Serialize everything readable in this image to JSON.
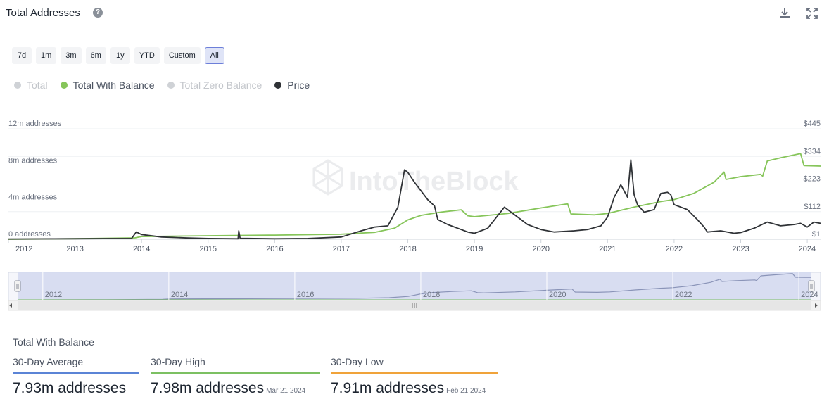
{
  "header": {
    "title": "Total Addresses",
    "help_glyph": "?"
  },
  "ranges": [
    "7d",
    "1m",
    "3m",
    "6m",
    "1y",
    "YTD",
    "Custom",
    "All"
  ],
  "active_range": "All",
  "legend": [
    {
      "label": "Total",
      "color": "#cfd2d6",
      "muted": true
    },
    {
      "label": "Total With Balance",
      "color": "#86c55a",
      "muted": false
    },
    {
      "label": "Total Zero Balance",
      "color": "#cfd2d6",
      "muted": true
    },
    {
      "label": "Price",
      "color": "#2f3236",
      "muted": false
    }
  ],
  "watermark": "IntoTheBlock",
  "chart_data": {
    "type": "line",
    "title": "Total Addresses",
    "x_range": [
      2012.0,
      2024.2
    ],
    "x_ticks": [
      "2012",
      "2013",
      "2014",
      "2015",
      "2016",
      "2017",
      "2018",
      "2019",
      "2020",
      "2021",
      "2022",
      "2023",
      "2024"
    ],
    "y_left_range": [
      0,
      12000000
    ],
    "y_left_ticks": [
      "0 addresses",
      "4m addresses",
      "8m addresses",
      "12m addresses"
    ],
    "y_right_range": [
      1,
      445
    ],
    "y_right_ticks": [
      "$1",
      "$112",
      "$223",
      "$334",
      "$445"
    ],
    "series": [
      {
        "name": "Total With Balance",
        "axis": "left",
        "color": "#86c55a",
        "points": [
          [
            2012.0,
            0
          ],
          [
            2013.0,
            60000
          ],
          [
            2013.9,
            150000
          ],
          [
            2014.0,
            300000
          ],
          [
            2015.0,
            380000
          ],
          [
            2016.0,
            450000
          ],
          [
            2017.0,
            550000
          ],
          [
            2017.5,
            750000
          ],
          [
            2017.8,
            1200000
          ],
          [
            2018.0,
            2100000
          ],
          [
            2018.2,
            2600000
          ],
          [
            2018.5,
            2950000
          ],
          [
            2018.8,
            3200000
          ],
          [
            2018.9,
            2550000
          ],
          [
            2019.0,
            2450000
          ],
          [
            2019.5,
            2800000
          ],
          [
            2020.0,
            3400000
          ],
          [
            2020.4,
            3850000
          ],
          [
            2020.45,
            2750000
          ],
          [
            2020.8,
            2650000
          ],
          [
            2021.0,
            2800000
          ],
          [
            2021.4,
            3500000
          ],
          [
            2021.8,
            4100000
          ],
          [
            2022.0,
            4300000
          ],
          [
            2022.3,
            5000000
          ],
          [
            2022.6,
            6200000
          ],
          [
            2022.75,
            7300000
          ],
          [
            2022.78,
            6500000
          ],
          [
            2023.0,
            6800000
          ],
          [
            2023.3,
            7050000
          ],
          [
            2023.33,
            6850000
          ],
          [
            2023.4,
            8500000
          ],
          [
            2023.6,
            8850000
          ],
          [
            2023.9,
            9300000
          ],
          [
            2023.95,
            8000000
          ],
          [
            2024.2,
            7950000
          ]
        ]
      },
      {
        "name": "Price",
        "axis": "right",
        "color": "#2f3236",
        "points": [
          [
            2012.0,
            2
          ],
          [
            2013.0,
            3
          ],
          [
            2013.85,
            4
          ],
          [
            2013.92,
            30
          ],
          [
            2014.0,
            20
          ],
          [
            2014.3,
            10
          ],
          [
            2014.7,
            6
          ],
          [
            2015.0,
            4
          ],
          [
            2015.45,
            3
          ],
          [
            2015.46,
            35
          ],
          [
            2015.48,
            5
          ],
          [
            2016.0,
            3
          ],
          [
            2016.5,
            4
          ],
          [
            2017.0,
            10
          ],
          [
            2017.3,
            35
          ],
          [
            2017.5,
            50
          ],
          [
            2017.7,
            55
          ],
          [
            2017.85,
            130
          ],
          [
            2017.95,
            280
          ],
          [
            2018.0,
            270
          ],
          [
            2018.1,
            230
          ],
          [
            2018.3,
            160
          ],
          [
            2018.4,
            135
          ],
          [
            2018.45,
            80
          ],
          [
            2018.6,
            60
          ],
          [
            2018.9,
            30
          ],
          [
            2019.0,
            25
          ],
          [
            2019.2,
            45
          ],
          [
            2019.45,
            130
          ],
          [
            2019.6,
            100
          ],
          [
            2019.8,
            60
          ],
          [
            2020.0,
            40
          ],
          [
            2020.2,
            30
          ],
          [
            2020.5,
            35
          ],
          [
            2020.7,
            40
          ],
          [
            2020.9,
            55
          ],
          [
            2021.0,
            90
          ],
          [
            2021.1,
            170
          ],
          [
            2021.2,
            220
          ],
          [
            2021.3,
            170
          ],
          [
            2021.35,
            320
          ],
          [
            2021.4,
            180
          ],
          [
            2021.45,
            140
          ],
          [
            2021.55,
            110
          ],
          [
            2021.7,
            120
          ],
          [
            2021.8,
            185
          ],
          [
            2021.9,
            190
          ],
          [
            2021.95,
            180
          ],
          [
            2022.0,
            140
          ],
          [
            2022.2,
            120
          ],
          [
            2022.35,
            80
          ],
          [
            2022.45,
            50
          ],
          [
            2022.5,
            30
          ],
          [
            2022.7,
            35
          ],
          [
            2022.9,
            25
          ],
          [
            2023.0,
            28
          ],
          [
            2023.2,
            45
          ],
          [
            2023.4,
            70
          ],
          [
            2023.6,
            55
          ],
          [
            2023.8,
            60
          ],
          [
            2023.9,
            65
          ],
          [
            2024.0,
            50
          ],
          [
            2024.1,
            70
          ],
          [
            2024.2,
            65
          ]
        ]
      }
    ]
  },
  "navigator": {
    "ticks": [
      "2012",
      "2014",
      "2016",
      "2018",
      "2020",
      "2022",
      "2024"
    ]
  },
  "stats": {
    "title": "Total With Balance",
    "items": [
      {
        "label": "30-Day Average",
        "value": "7.93m addresses",
        "date": "",
        "color": "#5b84d6"
      },
      {
        "label": "30-Day High",
        "value": "7.98m addresses",
        "date": "Mar 21 2024",
        "color": "#7cc062"
      },
      {
        "label": "30-Day Low",
        "value": "7.91m addresses",
        "date": "Feb 21 2024",
        "color": "#f0a33a"
      }
    ]
  }
}
